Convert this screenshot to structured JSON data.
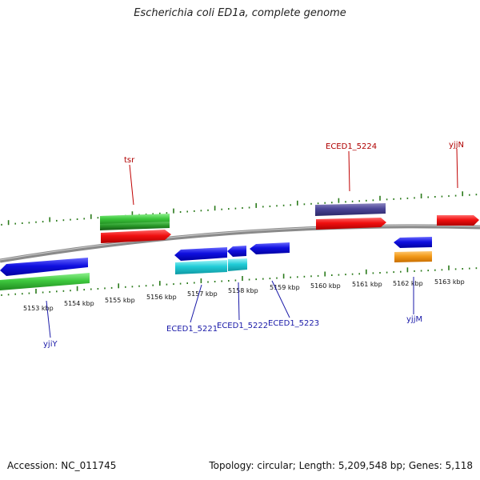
{
  "header": {
    "title": "Escherichia coli ED1a, complete genome"
  },
  "footer": {
    "accession": "Accession: NC_011745",
    "info": "Topology: circular; Length: 5,209,548 bp; Genes: 5,118"
  },
  "ticks": [
    "5153 kbp",
    "5154 kbp",
    "5155 kbp",
    "5156 kbp",
    "5157 kbp",
    "5158 kbp",
    "5159 kbp",
    "5160 kbp",
    "5161 kbp",
    "5162 kbp",
    "5163 kbp"
  ],
  "gene_labels": [
    "tsr",
    "ECED1_5224",
    "yjjN",
    "yjiY",
    "ECED1_5221",
    "ECED1_5222",
    "ECED1_5223",
    "yjjM"
  ],
  "colors": {
    "label_red": "#b00000",
    "label_blue": "#1a1aa8",
    "tick_green": "#2a7a1a",
    "backbone": "#8a8a8a"
  }
}
